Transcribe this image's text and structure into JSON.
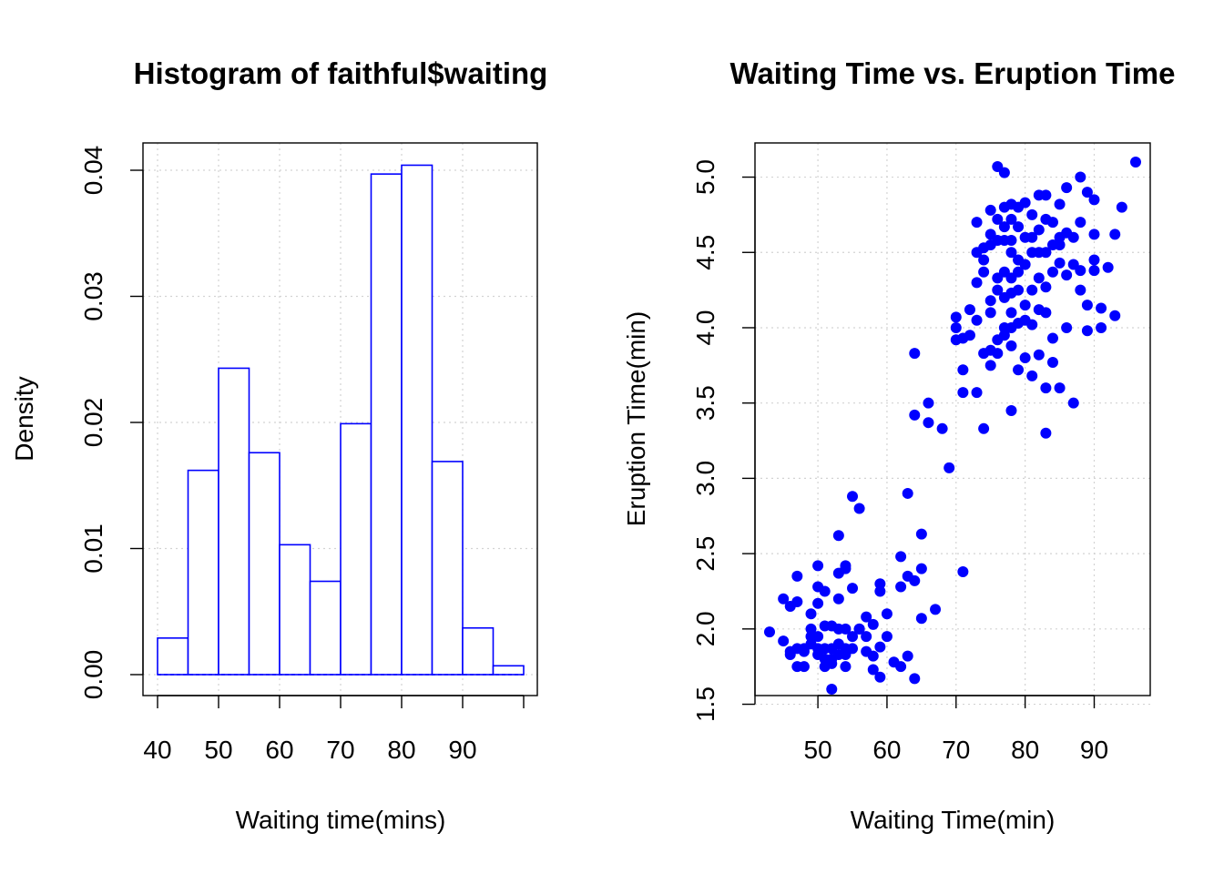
{
  "chart_data": [
    {
      "type": "bar",
      "subtype": "histogram",
      "title": "Histogram of faithful$waiting",
      "xlabel": "Waiting time(mins)",
      "ylabel": "Density",
      "bin_edges": [
        40,
        45,
        50,
        55,
        60,
        65,
        70,
        75,
        80,
        85,
        90,
        95,
        100
      ],
      "values": [
        0.0029,
        0.0162,
        0.0243,
        0.0176,
        0.0103,
        0.0074,
        0.0199,
        0.0397,
        0.0404,
        0.0169,
        0.0037,
        0.0007
      ],
      "xlim": [
        40,
        100
      ],
      "ylim": [
        0,
        0.04
      ],
      "xticks": [
        "40",
        "50",
        "60",
        "70",
        "80",
        "90"
      ],
      "yticks": [
        "0.00",
        "0.01",
        "0.02",
        "0.03",
        "0.04"
      ],
      "grid": true,
      "color": "#0000ff"
    },
    {
      "type": "scatter",
      "title": "Waiting Time vs. Eruption Time",
      "xlabel": "Waiting Time(min)",
      "ylabel": "Eruption Time(min)",
      "xlim": [
        43,
        96
      ],
      "ylim": [
        1.6,
        5.1
      ],
      "xticks": [
        "50",
        "60",
        "70",
        "80",
        "90"
      ],
      "yticks": [
        "1.5",
        "2.0",
        "2.5",
        "3.0",
        "3.5",
        "4.0",
        "4.5",
        "5.0"
      ],
      "grid": true,
      "color": "#0000ff",
      "points": [
        [
          43,
          1.98
        ],
        [
          45,
          2.2
        ],
        [
          45,
          1.92
        ],
        [
          46,
          1.83
        ],
        [
          46,
          2.15
        ],
        [
          46,
          1.85
        ],
        [
          47,
          2.35
        ],
        [
          47,
          1.75
        ],
        [
          47,
          1.87
        ],
        [
          47,
          2.18
        ],
        [
          48,
          1.85
        ],
        [
          48,
          1.75
        ],
        [
          48,
          1.87
        ],
        [
          49,
          2.1
        ],
        [
          49,
          1.9
        ],
        [
          49,
          2.0
        ],
        [
          49,
          1.95
        ],
        [
          50,
          1.87
        ],
        [
          50,
          1.95
        ],
        [
          50,
          2.42
        ],
        [
          50,
          2.28
        ],
        [
          50,
          1.83
        ],
        [
          50,
          2.17
        ],
        [
          51,
          1.8
        ],
        [
          51,
          2.02
        ],
        [
          51,
          2.25
        ],
        [
          51,
          1.87
        ],
        [
          51,
          1.75
        ],
        [
          52,
          1.6
        ],
        [
          52,
          1.8
        ],
        [
          52,
          2.02
        ],
        [
          52,
          1.77
        ],
        [
          52,
          1.87
        ],
        [
          53,
          2.37
        ],
        [
          53,
          1.9
        ],
        [
          53,
          2.2
        ],
        [
          53,
          1.83
        ],
        [
          53,
          2.62
        ],
        [
          53,
          2.0
        ],
        [
          54,
          2.4
        ],
        [
          54,
          1.75
        ],
        [
          54,
          1.87
        ],
        [
          54,
          2.42
        ],
        [
          54,
          1.83
        ],
        [
          54,
          2.0
        ],
        [
          55,
          2.88
        ],
        [
          55,
          2.27
        ],
        [
          55,
          1.95
        ],
        [
          55,
          1.87
        ],
        [
          56,
          2.8
        ],
        [
          56,
          2.0
        ],
        [
          56,
          2.0
        ],
        [
          57,
          1.95
        ],
        [
          57,
          2.08
        ],
        [
          57,
          1.85
        ],
        [
          58,
          1.82
        ],
        [
          58,
          2.03
        ],
        [
          58,
          1.73
        ],
        [
          59,
          1.68
        ],
        [
          59,
          2.25
        ],
        [
          59,
          2.3
        ],
        [
          59,
          1.88
        ],
        [
          60,
          2.1
        ],
        [
          60,
          1.95
        ],
        [
          61,
          1.78
        ],
        [
          62,
          2.28
        ],
        [
          62,
          2.48
        ],
        [
          62,
          1.75
        ],
        [
          63,
          1.82
        ],
        [
          63,
          2.9
        ],
        [
          63,
          2.35
        ],
        [
          64,
          1.67
        ],
        [
          64,
          2.32
        ],
        [
          64,
          3.42
        ],
        [
          64,
          3.83
        ],
        [
          65,
          2.07
        ],
        [
          65,
          2.4
        ],
        [
          65,
          2.63
        ],
        [
          66,
          3.37
        ],
        [
          66,
          3.5
        ],
        [
          67,
          2.13
        ],
        [
          68,
          3.33
        ],
        [
          69,
          3.07
        ],
        [
          70,
          4.07
        ],
        [
          70,
          4.0
        ],
        [
          70,
          3.92
        ],
        [
          71,
          3.57
        ],
        [
          71,
          3.72
        ],
        [
          71,
          3.93
        ],
        [
          71,
          2.38
        ],
        [
          72,
          3.95
        ],
        [
          72,
          4.12
        ],
        [
          73,
          4.05
        ],
        [
          73,
          3.57
        ],
        [
          73,
          4.3
        ],
        [
          73,
          4.7
        ],
        [
          73,
          4.5
        ],
        [
          74,
          4.53
        ],
        [
          74,
          4.37
        ],
        [
          74,
          4.45
        ],
        [
          74,
          3.33
        ],
        [
          74,
          3.83
        ],
        [
          75,
          4.78
        ],
        [
          75,
          3.85
        ],
        [
          75,
          4.1
        ],
        [
          75,
          4.55
        ],
        [
          75,
          3.75
        ],
        [
          75,
          4.18
        ],
        [
          75,
          4.62
        ],
        [
          76,
          5.07
        ],
        [
          76,
          4.25
        ],
        [
          76,
          4.72
        ],
        [
          76,
          3.92
        ],
        [
          76,
          4.58
        ],
        [
          76,
          3.83
        ],
        [
          76,
          4.33
        ],
        [
          77,
          5.03
        ],
        [
          77,
          4.8
        ],
        [
          77,
          4.58
        ],
        [
          77,
          4.2
        ],
        [
          77,
          4.37
        ],
        [
          77,
          4.0
        ],
        [
          77,
          3.95
        ],
        [
          77,
          4.67
        ],
        [
          78,
          4.72
        ],
        [
          78,
          4.5
        ],
        [
          78,
          4.23
        ],
        [
          78,
          4.82
        ],
        [
          78,
          4.1
        ],
        [
          78,
          3.88
        ],
        [
          78,
          4.58
        ],
        [
          78,
          4.33
        ],
        [
          78,
          4.0
        ],
        [
          78,
          3.45
        ],
        [
          79,
          4.25
        ],
        [
          79,
          4.45
        ],
        [
          79,
          4.67
        ],
        [
          79,
          4.8
        ],
        [
          79,
          4.03
        ],
        [
          79,
          3.72
        ],
        [
          79,
          4.37
        ],
        [
          80,
          4.83
        ],
        [
          80,
          4.05
        ],
        [
          80,
          4.42
        ],
        [
          80,
          4.6
        ],
        [
          80,
          3.8
        ],
        [
          80,
          4.15
        ],
        [
          81,
          4.75
        ],
        [
          81,
          4.5
        ],
        [
          81,
          4.02
        ],
        [
          81,
          4.25
        ],
        [
          81,
          3.68
        ],
        [
          81,
          4.6
        ],
        [
          82,
          4.88
        ],
        [
          82,
          4.33
        ],
        [
          82,
          4.12
        ],
        [
          82,
          3.82
        ],
        [
          82,
          4.65
        ],
        [
          82,
          4.5
        ],
        [
          83,
          4.88
        ],
        [
          83,
          4.5
        ],
        [
          83,
          4.27
        ],
        [
          83,
          3.6
        ],
        [
          83,
          3.3
        ],
        [
          83,
          4.1
        ],
        [
          83,
          4.72
        ],
        [
          84,
          4.7
        ],
        [
          84,
          4.37
        ],
        [
          84,
          3.93
        ],
        [
          84,
          4.55
        ],
        [
          84,
          3.77
        ],
        [
          85,
          4.55
        ],
        [
          85,
          3.6
        ],
        [
          85,
          4.43
        ],
        [
          85,
          4.82
        ],
        [
          85,
          4.6
        ],
        [
          86,
          4.93
        ],
        [
          86,
          4.35
        ],
        [
          86,
          4.63
        ],
        [
          86,
          4.0
        ],
        [
          87,
          4.6
        ],
        [
          87,
          4.42
        ],
        [
          87,
          3.5
        ],
        [
          88,
          5.0
        ],
        [
          88,
          4.38
        ],
        [
          88,
          4.7
        ],
        [
          88,
          4.25
        ],
        [
          89,
          4.9
        ],
        [
          89,
          4.15
        ],
        [
          89,
          3.98
        ],
        [
          90,
          4.85
        ],
        [
          90,
          4.62
        ],
        [
          90,
          4.45
        ],
        [
          90,
          4.38
        ],
        [
          91,
          4.0
        ],
        [
          91,
          4.13
        ],
        [
          92,
          4.4
        ],
        [
          93,
          4.62
        ],
        [
          93,
          4.08
        ],
        [
          94,
          4.8
        ],
        [
          96,
          5.1
        ]
      ]
    }
  ]
}
